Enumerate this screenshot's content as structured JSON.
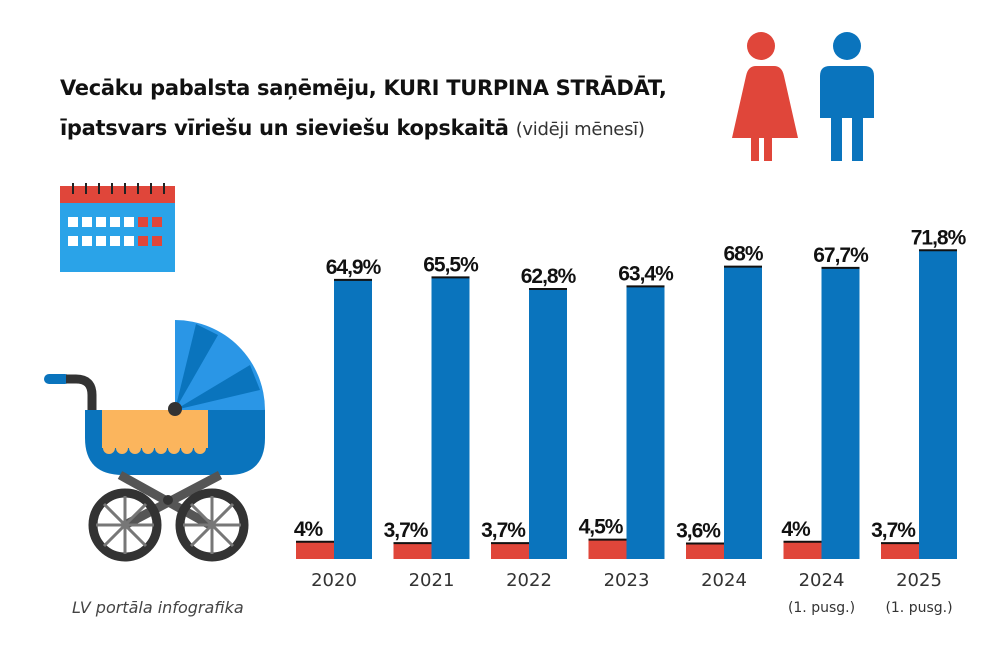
{
  "title": {
    "line1": "Vecāku pabalsta saņēmēju, KURI TURPINA STRĀDĀT,",
    "line2_bold": "īpatsvars vīriešu un sieviešu kopskaitā",
    "line2_note": "(vidēji mēnesī)"
  },
  "credit": "LV portāla infografika",
  "colors": {
    "women": "#e0463a",
    "men": "#0a74bd",
    "calendar": "#2aa3e8",
    "orange": "#fbb55d"
  },
  "chart_data": {
    "type": "bar",
    "title": "Vecāku pabalsta saņēmēju, KURI TURPINA STRĀDĀT, īpatsvars vīriešu un sieviešu kopskaitā (vidēji mēnesī)",
    "categories": [
      "2020",
      "2021",
      "2022",
      "2023",
      "2024",
      "2024",
      "2025"
    ],
    "category_sublabels": [
      "",
      "",
      "",
      "",
      "",
      "(1. pusg.)",
      "(1. pusg.)"
    ],
    "series": [
      {
        "name": "Vīrieši",
        "color": "#e0463a",
        "values": [
          4,
          3.7,
          3.7,
          4.5,
          3.6,
          4,
          3.7
        ],
        "labels": [
          "4%",
          "3,7%",
          "3,7%",
          "4,5%",
          "3,6%",
          "4%",
          "3,7%"
        ]
      },
      {
        "name": "Sievietes",
        "color": "#0a74bd",
        "values": [
          64.9,
          65.5,
          62.8,
          63.4,
          68,
          67.7,
          71.8
        ],
        "labels": [
          "64,9%",
          "65,5%",
          "62,8%",
          "63,4%",
          "68%",
          "67,7%",
          "71,8%"
        ]
      }
    ],
    "ylim": [
      0,
      75
    ],
    "xlabel": "",
    "ylabel": "",
    "grid": false,
    "legend": "icons top-right"
  }
}
